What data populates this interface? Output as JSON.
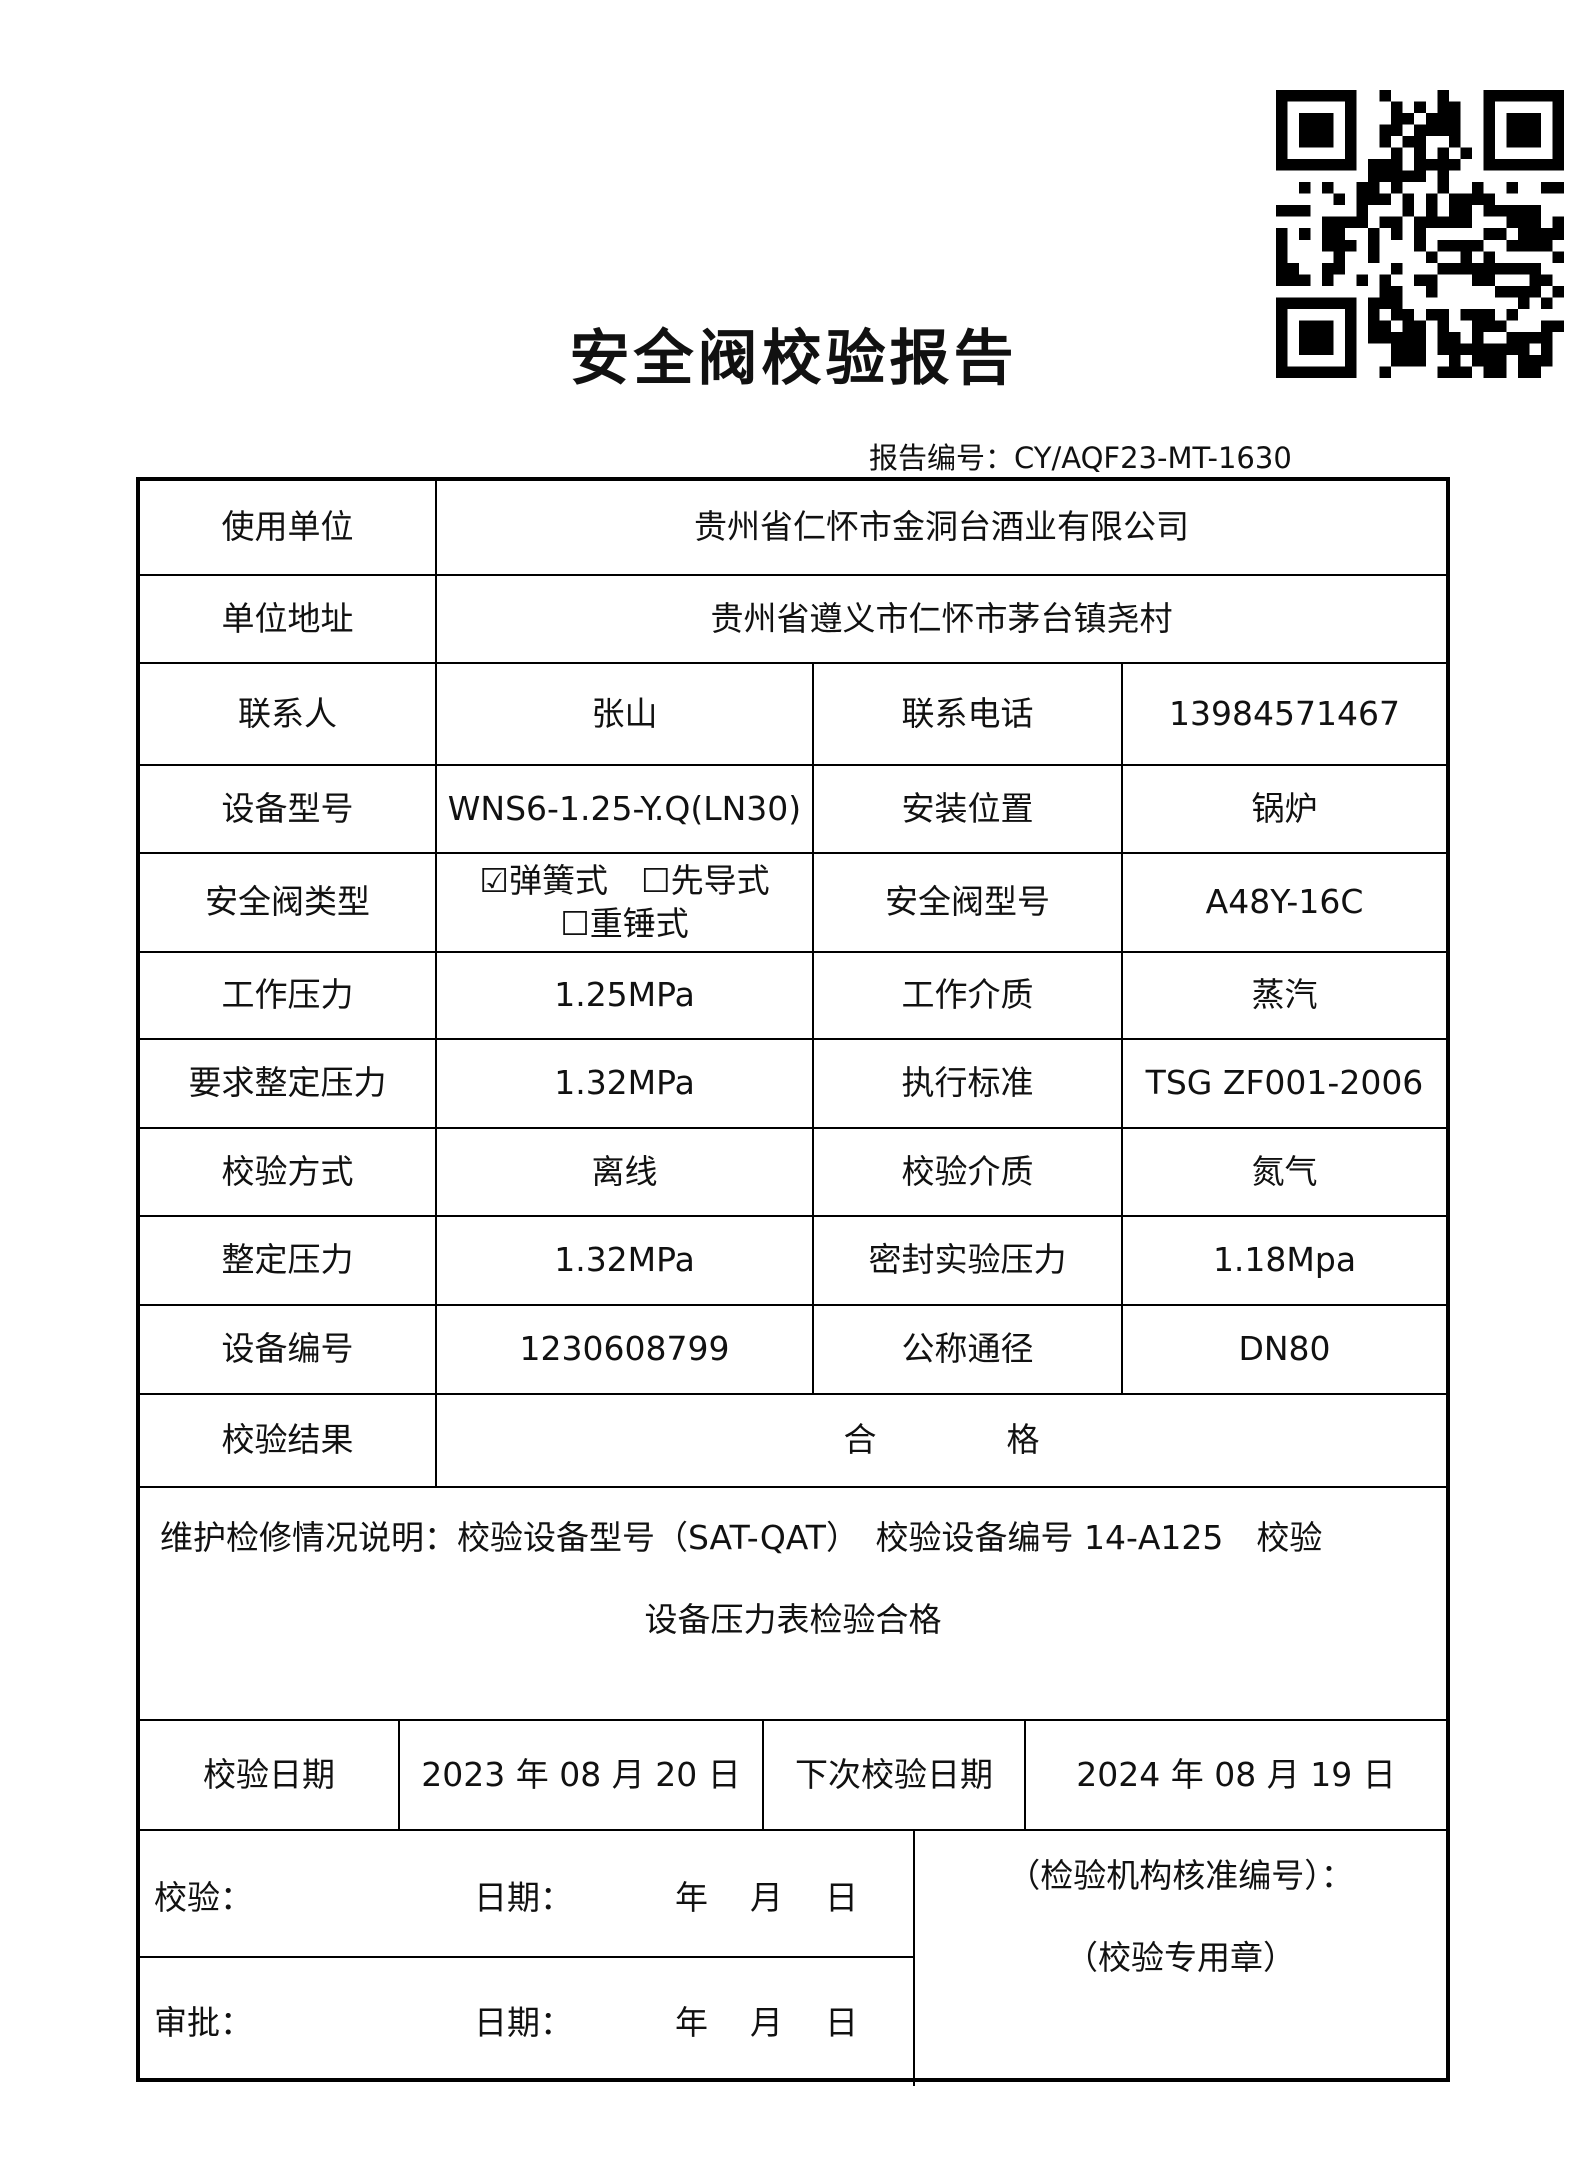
{
  "title": "安全阀校验报告",
  "report_number": {
    "label": "报告编号：",
    "value": "CY/AQF23-MT-1630"
  },
  "qr_code": {
    "icon": "qr-code"
  },
  "rows": {
    "user_unit": {
      "label": "使用单位",
      "value": "贵州省仁怀市金洞台酒业有限公司"
    },
    "address": {
      "label": "单位地址",
      "value": "贵州省遵义市仁怀市茅台镇尧村"
    },
    "contact": {
      "label": "联系人",
      "value": "张山",
      "label2": "联系电话",
      "value2": "13984571467"
    },
    "device_model": {
      "label": "设备型号",
      "value": "WNS6-1.25-Y.Q(LN30)",
      "label2": "安装位置",
      "value2": "锅炉"
    },
    "valve_type": {
      "label": "安全阀类型",
      "options": [
        {
          "label": "弹簧式",
          "checked": true
        },
        {
          "label": "先导式",
          "checked": false
        },
        {
          "label": "重锤式",
          "checked": false
        }
      ],
      "label2": "安全阀型号",
      "value2": "A48Y-16C"
    },
    "work_pressure": {
      "label": "工作压力",
      "value": "1.25MPa",
      "label2": "工作介质",
      "value2": "蒸汽"
    },
    "required_set_pressure": {
      "label": "要求整定压力",
      "value": "1.32MPa",
      "label2": "执行标准",
      "value2": "TSG ZF001-2006"
    },
    "method": {
      "label": "校验方式",
      "value": "离线",
      "label2": "校验介质",
      "value2": "氮气"
    },
    "set_pressure": {
      "label": "整定压力",
      "value": "1.32MPa",
      "label2": "密封实验压力",
      "value2": "1.18Mpa"
    },
    "device_no": {
      "label": "设备编号",
      "value": "1230608799",
      "label2": "公称通径",
      "value2": "DN80"
    },
    "result": {
      "label": "校验结果",
      "value1": "合",
      "value2": "格"
    }
  },
  "maintenance": {
    "line1": "维护检修情况说明：校验设备型号（SAT-QAT）　校验设备编号 14-A125　校验",
    "line2": "设备压力表检验合格"
  },
  "dates": {
    "label": "校验日期",
    "value": "2023 年 08 月 20 日",
    "label2": "下次校验日期",
    "value2": "2024 年 08 月 19 日"
  },
  "sign": {
    "check": "校验：",
    "approve": "审批：",
    "date_label": "日期：",
    "year": "年",
    "month": "月",
    "day": "日",
    "org_no": "（检验机构核准编号）：",
    "seal": "（校验专用章）"
  }
}
